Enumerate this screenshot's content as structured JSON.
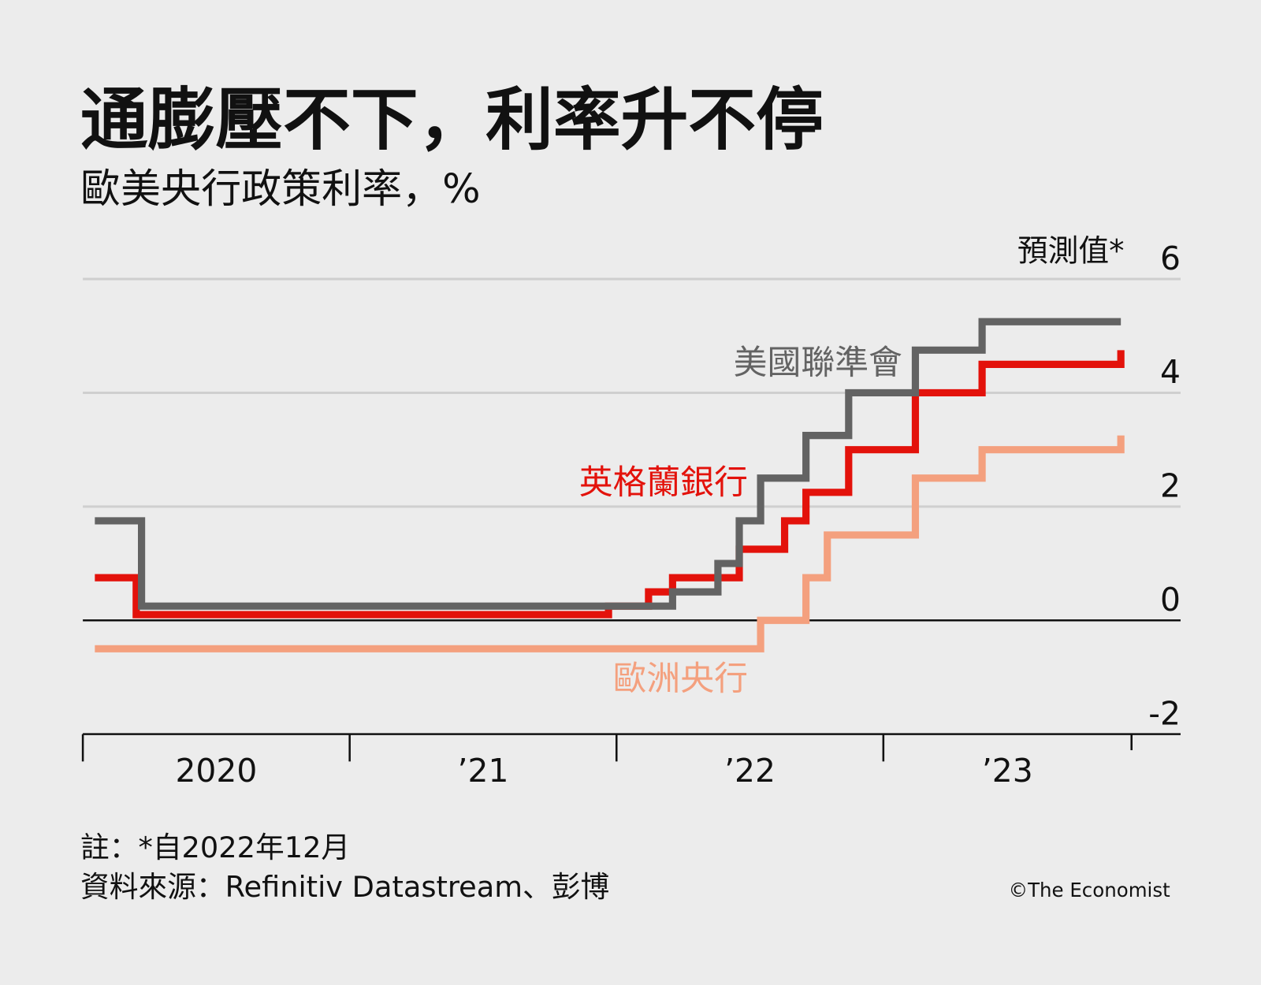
{
  "chart_data": {
    "type": "step",
    "title": "通膨壓不下，利率升不停",
    "subtitle": "歐美央行政策利率，%",
    "annotation": "預測值*",
    "note": "註：*自2022年12月",
    "source": "資料來源：Refinitiv Datastream、彭博",
    "credit": "©The Economist",
    "xlim": [
      2020,
      2023.93
    ],
    "xticks": [
      {
        "value": 2020,
        "label": "2020"
      },
      {
        "value": 2021,
        "label": "’21"
      },
      {
        "value": 2022,
        "label": "’22"
      },
      {
        "value": 2023,
        "label": "’23"
      }
    ],
    "ylim": [
      -2,
      6
    ],
    "yticks": [
      -2,
      0,
      2,
      4,
      6
    ],
    "grid": true,
    "series": [
      {
        "name": "歐洲央行",
        "color": "#f4a07e",
        "x": [
          2020.045,
          2022.54,
          2022.71,
          2022.79,
          2023.12,
          2023.37,
          2023.89
        ],
        "values": [
          -0.5,
          0.0,
          0.75,
          1.5,
          2.5,
          3.0,
          3.25
        ]
      },
      {
        "name": "英格蘭銀行",
        "color": "#e3120b",
        "x": [
          2020.045,
          2020.2,
          2021.97,
          2022.12,
          2022.21,
          2022.46,
          2022.63,
          2022.71,
          2022.87,
          2023.12,
          2023.37,
          2023.89
        ],
        "values": [
          0.75,
          0.1,
          0.25,
          0.5,
          0.75,
          1.25,
          1.75,
          2.25,
          3.0,
          4.0,
          4.5,
          4.75
        ]
      },
      {
        "name": "美國聯準會",
        "color": "#636363",
        "x": [
          2020.045,
          2020.22,
          2022.21,
          2022.38,
          2022.46,
          2022.54,
          2022.71,
          2022.87,
          2023.12,
          2023.37,
          2023.89
        ],
        "values": [
          1.75,
          0.25,
          0.5,
          1.0,
          1.75,
          2.5,
          3.25,
          4.0,
          4.75,
          5.25,
          5.25
        ]
      }
    ]
  }
}
